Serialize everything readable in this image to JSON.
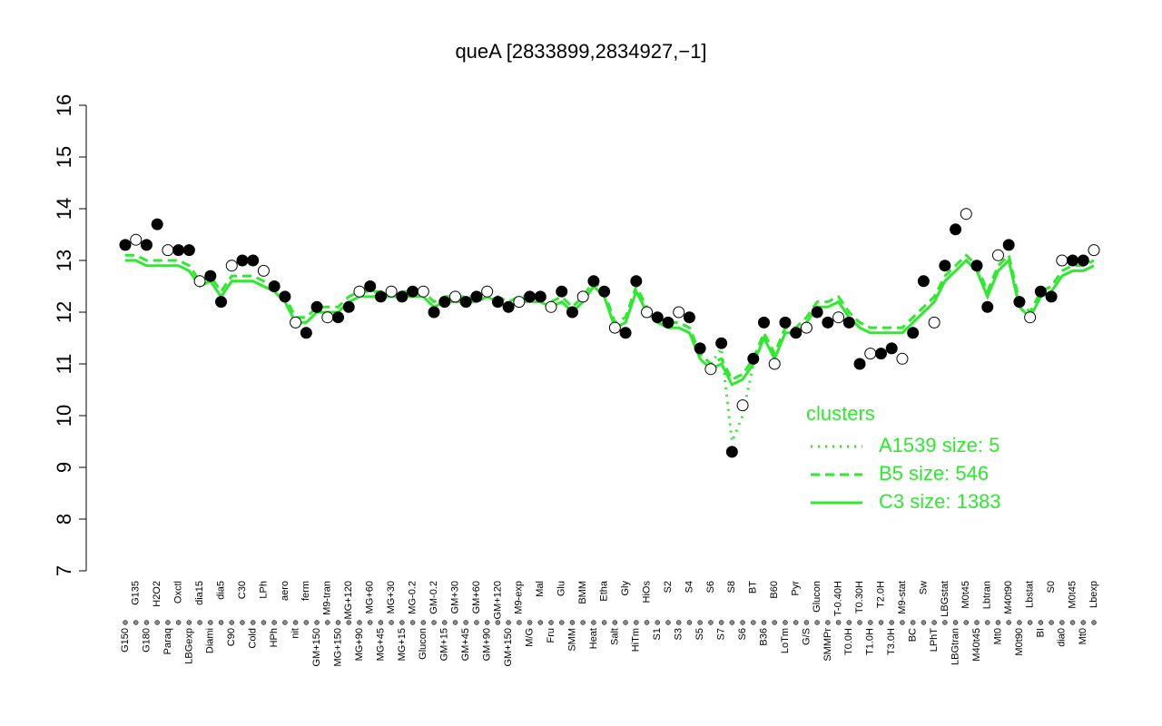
{
  "chart_data": {
    "type": "line",
    "title": "queA [2833899,2834927,−1]",
    "categories": [
      "G150",
      "G135",
      "G180",
      "H2O2",
      "Paraq",
      "Oxctl",
      "LBGexp",
      "dia15",
      "Diami",
      "dia5",
      "C90",
      "C30",
      "Cold",
      "LPh",
      "HPh",
      "aero",
      "nit",
      "ferm",
      "GM+150",
      "M9-tran",
      "MG+150",
      "MG+120",
      "MG+90",
      "MG+60",
      "MG+45",
      "MG+30",
      "MG+15",
      "MG-0.2",
      "Glucon",
      "GM-0.2",
      "GM+15",
      "GM+30",
      "GM+45",
      "GM+60",
      "GM+90",
      "GM+120",
      "GM+150",
      "M9-exp",
      "M/G",
      "Mal",
      "Fru",
      "Glu",
      "SMM",
      "BMM",
      "Heat",
      "Etha",
      "Salt",
      "Gly",
      "HiTm",
      "HiOs",
      "S1",
      "S2",
      "S3",
      "S4",
      "S5",
      "S6",
      "S7",
      "S8",
      "S6",
      "BT",
      "B36",
      "B60",
      "LoTm",
      "Pyr",
      "G/S",
      "Glucon",
      "SMMPr",
      "T-0.40H",
      "T0.0H",
      "T0.30H",
      "T1.0H",
      "T2.0H",
      "T3.0H",
      "M9-stat",
      "BC",
      "Sw",
      "LPhT",
      "LBGstat",
      "LBGtran",
      "M0t45",
      "M40t45",
      "Lbtran",
      "Mt0",
      "M40t90",
      "M0t90",
      "Lbstat",
      "BI",
      "S0",
      "dia0",
      "M0t45",
      "Mt0",
      "Lbexp"
    ],
    "values": [
      13.3,
      13.4,
      13.3,
      13.7,
      13.2,
      13.2,
      13.2,
      12.6,
      12.7,
      12.2,
      12.9,
      13.0,
      13.0,
      12.8,
      12.5,
      12.3,
      11.8,
      11.6,
      12.1,
      11.9,
      11.9,
      12.1,
      12.4,
      12.5,
      12.3,
      12.4,
      12.3,
      12.4,
      12.4,
      12.0,
      12.2,
      12.3,
      12.2,
      12.3,
      12.4,
      12.2,
      12.1,
      12.2,
      12.3,
      12.3,
      12.1,
      12.4,
      12.0,
      12.3,
      12.6,
      12.4,
      11.7,
      11.6,
      12.6,
      12.0,
      11.9,
      11.8,
      12.0,
      11.9,
      11.3,
      10.9,
      11.4,
      9.3,
      10.2,
      11.1,
      11.8,
      11.0,
      11.8,
      11.6,
      11.7,
      12.0,
      11.8,
      11.9,
      11.8,
      11.0,
      11.2,
      11.2,
      11.3,
      11.1,
      11.6,
      12.6,
      11.8,
      12.9,
      13.6,
      13.9,
      12.9,
      12.1,
      13.1,
      13.3,
      12.2,
      11.9,
      12.4,
      12.3,
      13.0,
      13.0,
      13.0,
      13.2
    ],
    "point_color": "#000000",
    "legend_title": "clusters",
    "legend": "center-right",
    "series": [
      {
        "name": "A1539 size: 5",
        "color": "#2eea2e",
        "style": "dotted",
        "values": [
          null,
          null,
          null,
          null,
          null,
          null,
          null,
          null,
          null,
          null,
          null,
          null,
          null,
          null,
          null,
          null,
          null,
          null,
          null,
          null,
          null,
          null,
          null,
          null,
          null,
          null,
          null,
          null,
          null,
          null,
          null,
          null,
          null,
          null,
          null,
          null,
          null,
          null,
          null,
          null,
          null,
          null,
          null,
          null,
          null,
          null,
          null,
          null,
          null,
          null,
          null,
          null,
          null,
          null,
          null,
          11.0,
          11.3,
          9.5,
          10.0,
          11.0,
          null,
          null,
          null,
          null,
          null,
          null,
          null,
          null,
          null,
          null,
          null,
          null,
          null,
          null,
          null,
          null,
          null,
          null,
          null,
          null,
          null,
          null,
          null,
          null,
          null,
          null,
          null,
          null,
          null,
          null,
          null,
          null
        ]
      },
      {
        "name": "B5 size: 546",
        "color": "#2eea2e",
        "style": "dashed",
        "values": [
          13.1,
          13.1,
          13.0,
          13.0,
          13.0,
          13.0,
          12.9,
          12.6,
          12.7,
          12.4,
          12.7,
          12.7,
          12.7,
          12.6,
          12.5,
          12.3,
          11.9,
          11.9,
          12.1,
          12.1,
          12.1,
          12.3,
          12.4,
          12.4,
          12.4,
          12.4,
          12.4,
          12.4,
          12.4,
          12.2,
          12.3,
          12.3,
          12.3,
          12.3,
          12.4,
          12.3,
          12.2,
          12.3,
          12.3,
          12.3,
          12.2,
          12.3,
          12.1,
          12.3,
          12.6,
          12.4,
          11.8,
          11.9,
          12.5,
          12.1,
          11.9,
          11.8,
          11.8,
          11.7,
          11.2,
          11.0,
          11.1,
          10.7,
          10.8,
          11.1,
          11.6,
          11.2,
          11.7,
          11.7,
          11.9,
          12.2,
          12.2,
          12.3,
          12.0,
          11.8,
          11.7,
          11.7,
          11.7,
          11.7,
          11.9,
          12.1,
          12.3,
          12.7,
          12.9,
          13.1,
          12.9,
          12.4,
          12.9,
          13.1,
          12.2,
          12.0,
          12.4,
          12.5,
          12.8,
          12.9,
          12.9,
          13.0
        ]
      },
      {
        "name": "C3 size: 1383",
        "color": "#2eea2e",
        "style": "solid",
        "values": [
          13.0,
          13.0,
          12.9,
          12.9,
          12.9,
          12.9,
          12.8,
          12.5,
          12.6,
          12.3,
          12.6,
          12.6,
          12.6,
          12.5,
          12.4,
          12.2,
          11.8,
          11.8,
          12.0,
          12.0,
          12.0,
          12.2,
          12.3,
          12.3,
          12.3,
          12.3,
          12.3,
          12.3,
          12.3,
          12.1,
          12.2,
          12.2,
          12.2,
          12.2,
          12.3,
          12.2,
          12.1,
          12.2,
          12.2,
          12.2,
          12.1,
          12.2,
          12.0,
          12.2,
          12.5,
          12.3,
          11.7,
          11.8,
          12.4,
          12.0,
          11.8,
          11.7,
          11.7,
          11.6,
          11.1,
          10.9,
          11.0,
          10.6,
          10.7,
          11.0,
          11.5,
          11.1,
          11.6,
          11.6,
          11.8,
          12.1,
          12.1,
          12.2,
          11.9,
          11.7,
          11.6,
          11.6,
          11.6,
          11.6,
          11.8,
          12.0,
          12.2,
          12.6,
          12.8,
          13.0,
          12.8,
          12.3,
          12.8,
          13.0,
          12.1,
          11.9,
          12.3,
          12.4,
          12.7,
          12.8,
          12.8,
          12.9
        ]
      }
    ],
    "ylim": [
      7,
      16
    ],
    "yticks": [
      7,
      8,
      9,
      10,
      11,
      12,
      13,
      14,
      15,
      16
    ]
  }
}
